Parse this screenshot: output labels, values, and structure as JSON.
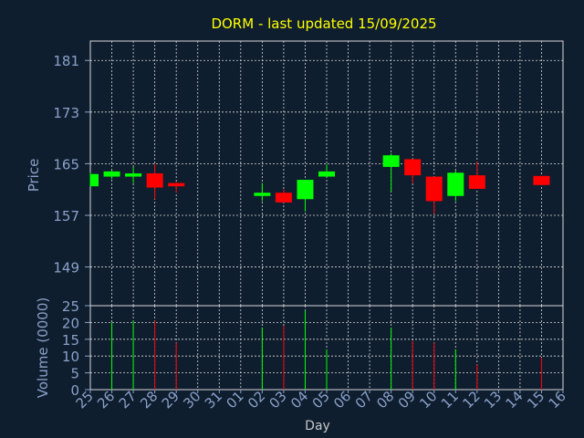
{
  "title": "DORM - last updated 15/09/2025",
  "colors": {
    "background": "#0f1e2f",
    "grid": "#d8d8d8",
    "axis_text": "#8aa0c8",
    "title": "#ffff00",
    "up": "#00ff00",
    "down": "#ff0000"
  },
  "chart_data": [
    {
      "type": "candlestick",
      "ylabel": "Price",
      "ylim": [
        143,
        184
      ],
      "yticks": [
        149,
        157,
        165,
        173,
        181
      ],
      "grid": true,
      "x": [
        "25",
        "26",
        "27",
        "28",
        "29",
        "30",
        "31",
        "01",
        "02",
        "03",
        "04",
        "05",
        "06",
        "07",
        "08",
        "09",
        "10",
        "11",
        "12",
        "13",
        "14",
        "15",
        "16"
      ],
      "candles": [
        {
          "x": "25",
          "open": 161.5,
          "high": 163.6,
          "low": 161.5,
          "close": 163.4
        },
        {
          "x": "26",
          "open": 163.0,
          "high": 164.0,
          "low": 162.6,
          "close": 163.8
        },
        {
          "x": "27",
          "open": 163.0,
          "high": 164.5,
          "low": 162.0,
          "close": 163.5
        },
        {
          "x": "28",
          "open": 163.5,
          "high": 165.0,
          "low": 159.5,
          "close": 161.3
        },
        {
          "x": "29",
          "open": 162.0,
          "high": 162.2,
          "low": 160.5,
          "close": 161.5
        },
        {
          "x": "02",
          "open": 160.0,
          "high": 162.0,
          "low": 159.2,
          "close": 160.5
        },
        {
          "x": "03",
          "open": 160.5,
          "high": 161.0,
          "low": 159.0,
          "close": 159.0
        },
        {
          "x": "04",
          "open": 159.5,
          "high": 162.5,
          "low": 157.6,
          "close": 162.5
        },
        {
          "x": "05",
          "open": 163.0,
          "high": 164.9,
          "low": 163.0,
          "close": 163.8
        },
        {
          "x": "08",
          "open": 164.5,
          "high": 166.6,
          "low": 160.7,
          "close": 166.3
        },
        {
          "x": "09",
          "open": 165.7,
          "high": 165.7,
          "low": 162.0,
          "close": 163.2
        },
        {
          "x": "10",
          "open": 163.0,
          "high": 163.0,
          "low": 157.2,
          "close": 159.2
        },
        {
          "x": "11",
          "open": 160.0,
          "high": 164.0,
          "low": 159.2,
          "close": 163.6
        },
        {
          "x": "12",
          "open": 163.2,
          "high": 165.3,
          "low": 161.1,
          "close": 161.1
        },
        {
          "x": "15",
          "open": 163.1,
          "high": 163.1,
          "low": 161.7,
          "close": 161.7
        }
      ]
    },
    {
      "type": "bar",
      "xlabel": "Day",
      "ylabel": "Volume (0000)",
      "ylim": [
        0,
        25
      ],
      "yticks": [
        0,
        5,
        10,
        15,
        20,
        25
      ],
      "grid": true,
      "x": [
        "25",
        "26",
        "27",
        "28",
        "29",
        "30",
        "31",
        "01",
        "02",
        "03",
        "04",
        "05",
        "06",
        "07",
        "08",
        "09",
        "10",
        "11",
        "12",
        "13",
        "14",
        "15",
        "16"
      ],
      "bars": [
        {
          "x": "26",
          "value": 20,
          "direction": "up"
        },
        {
          "x": "27",
          "value": 20.5,
          "direction": "up"
        },
        {
          "x": "28",
          "value": 20.5,
          "direction": "down"
        },
        {
          "x": "29",
          "value": 14,
          "direction": "down"
        },
        {
          "x": "02",
          "value": 18.5,
          "direction": "up"
        },
        {
          "x": "03",
          "value": 19,
          "direction": "down"
        },
        {
          "x": "04",
          "value": 23.5,
          "direction": "up"
        },
        {
          "x": "05",
          "value": 12,
          "direction": "up"
        },
        {
          "x": "08",
          "value": 18.5,
          "direction": "up"
        },
        {
          "x": "09",
          "value": 14.5,
          "direction": "down"
        },
        {
          "x": "10",
          "value": 14,
          "direction": "down"
        },
        {
          "x": "11",
          "value": 12,
          "direction": "up"
        },
        {
          "x": "12",
          "value": 7.5,
          "direction": "down"
        },
        {
          "x": "15",
          "value": 9.5,
          "direction": "down"
        }
      ]
    }
  ]
}
